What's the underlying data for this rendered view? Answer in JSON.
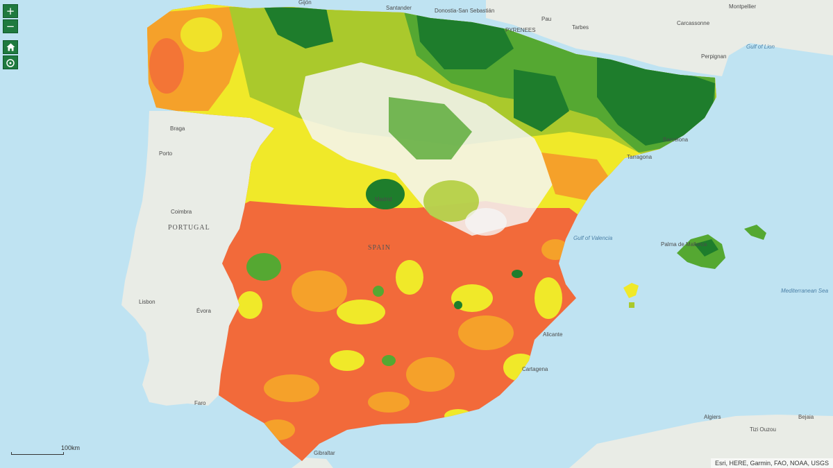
{
  "controls": {
    "zoom_in": "+",
    "zoom_out": "−",
    "home_icon": "home-icon",
    "locate_icon": "locate-icon",
    "accent_color": "#1f7a3f"
  },
  "map": {
    "labels": {
      "gijon": "Gijón",
      "santander": "Santander",
      "donostia": "Donostia-San Sebastián",
      "pau": "Pau",
      "tarbes": "Tarbes",
      "pyrenees": "PYRENEES",
      "carcassonne": "Carcassonne",
      "montpellier": "Montpellier",
      "perpignan": "Perpignan",
      "gulf_of_lion": "Gulf of Lion",
      "braga": "Braga",
      "porto": "Porto",
      "coimbra": "Coimbra",
      "portugal": "PORTUGAL",
      "lisbon": "Lisbon",
      "evora": "Évora",
      "faro": "Faro",
      "barcelona": "Barcelona",
      "tarragona": "Tarragona",
      "madrid": "Madrid",
      "spain": "SPAIN",
      "gulf_of_valencia": "Gulf of Valencia",
      "palma": "Palma de Mallorca",
      "mediterranean_sea": "Mediterranean Sea",
      "alicante": "Alicante",
      "cartagena": "Cartagena",
      "gibraltar": "Gibraltar",
      "algiers": "Algiers",
      "bejaia": "Bejaia",
      "tizi_ouzou": "Tizi Ouzou"
    },
    "palette": {
      "sea": "#bfe3f2",
      "land": "#e9ece6",
      "dark_green": "#1e7d2c",
      "green": "#55a832",
      "yellow_green": "#aac92c",
      "yellow": "#f0e929",
      "orange": "#f5a12a",
      "red_orange": "#f26a3a",
      "white": "#f5f5f5"
    }
  },
  "scale": {
    "label": "100km"
  },
  "attribution": "Esri, HERE, Garmin, FAO, NOAA, USGS"
}
